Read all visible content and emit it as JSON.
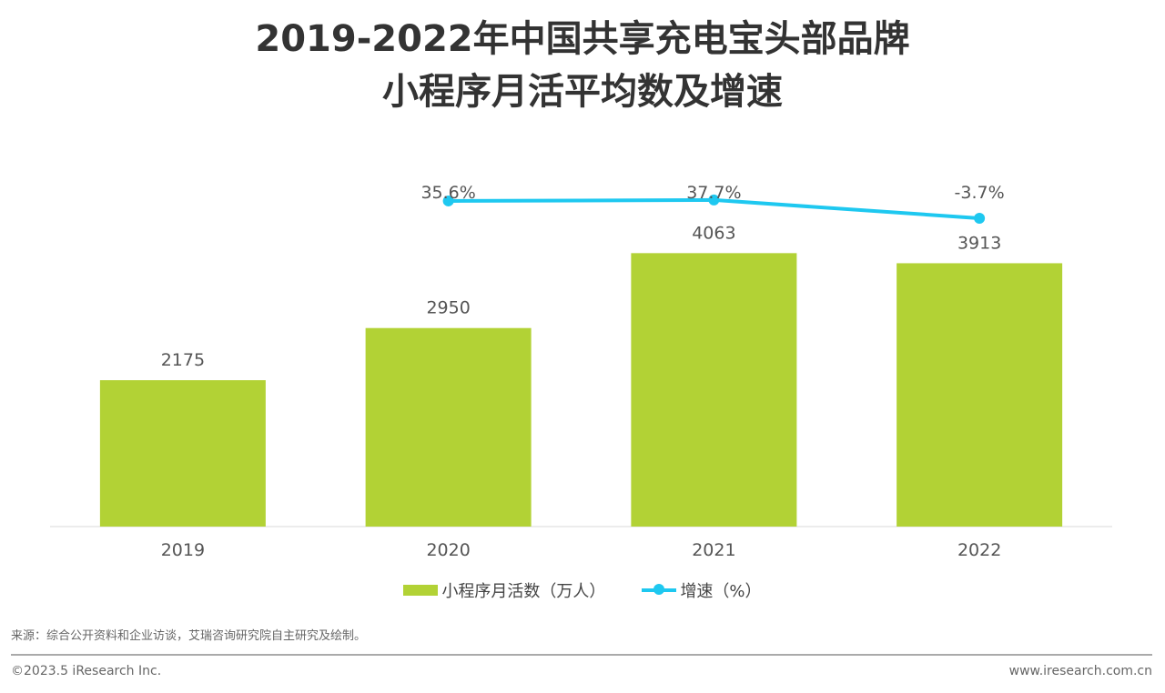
{
  "title_line1": "2019-2022年中国共享充电宝头部品牌",
  "title_line2": "小程序月活平均数及增速",
  "chart_data": {
    "type": "bar",
    "categories": [
      "2019",
      "2020",
      "2021",
      "2022"
    ],
    "series": [
      {
        "name": "小程序月活数（万人）",
        "type": "bar",
        "values": [
          2175,
          2950,
          4063,
          3913
        ],
        "labels": [
          "2175",
          "2950",
          "4063",
          "3913"
        ],
        "color": "#b2d235"
      },
      {
        "name": "增速（%）",
        "type": "line",
        "values": [
          null,
          35.6,
          37.7,
          -3.7
        ],
        "labels": [
          "",
          "35.6%",
          "37.7%",
          "-3.7%"
        ],
        "color": "#1ec8f0"
      }
    ],
    "legend": "bottom",
    "grid": false
  },
  "source": "来源：综合公开资料和企业访谈，艾瑞咨询研究院自主研究及绘制。",
  "copyright": "©2023.5 iResearch Inc.",
  "website": "www.iresearch.com.cn"
}
